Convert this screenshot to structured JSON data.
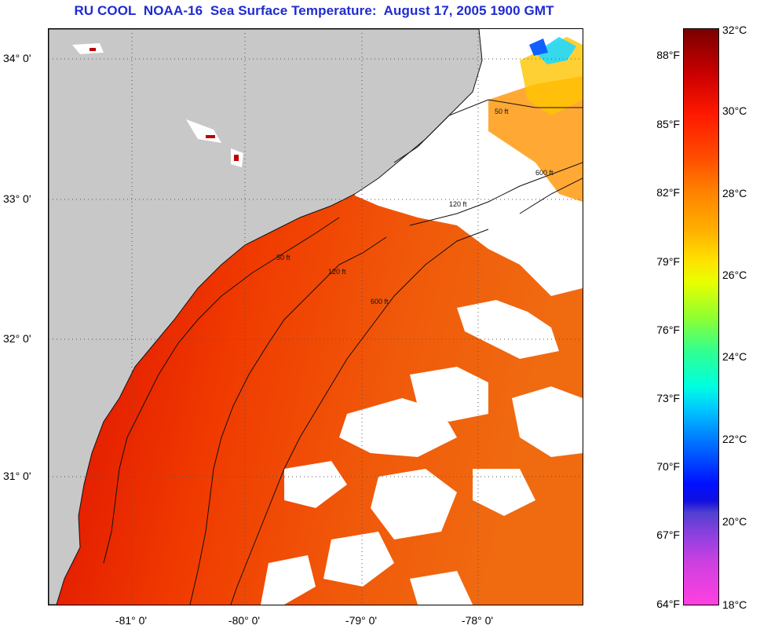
{
  "title": "RU COOL  NOAA-16  Sea Surface Temperature:  August 17, 2005 1900 GMT",
  "map": {
    "lat_labels": [
      "34° 0'",
      "33° 0'",
      "32° 0'",
      "31° 0'"
    ],
    "lon_labels": [
      "-81° 0'",
      "-80° 0'",
      "-79° 0'",
      "-78° 0'"
    ],
    "isobath_labels": [
      "50 ft",
      "120 ft",
      "600 ft"
    ],
    "colors": {
      "land": "#c8c8c8",
      "cloud": "#ffffff",
      "warm_dark": "#b00000",
      "warm": "#e81e00",
      "orange": "#f05a0a",
      "yellow": "#ffd000",
      "cyan": "#20e0ff",
      "blue": "#1060ff"
    }
  },
  "colorbar": {
    "fahrenheit_labels": [
      "88°F",
      "85°F",
      "82°F",
      "79°F",
      "76°F",
      "73°F",
      "70°F",
      "67°F",
      "64°F"
    ],
    "celsius_labels": [
      "32°C",
      "30°C",
      "28°C",
      "26°C",
      "24°C",
      "22°C",
      "20°C",
      "18°C"
    ]
  }
}
